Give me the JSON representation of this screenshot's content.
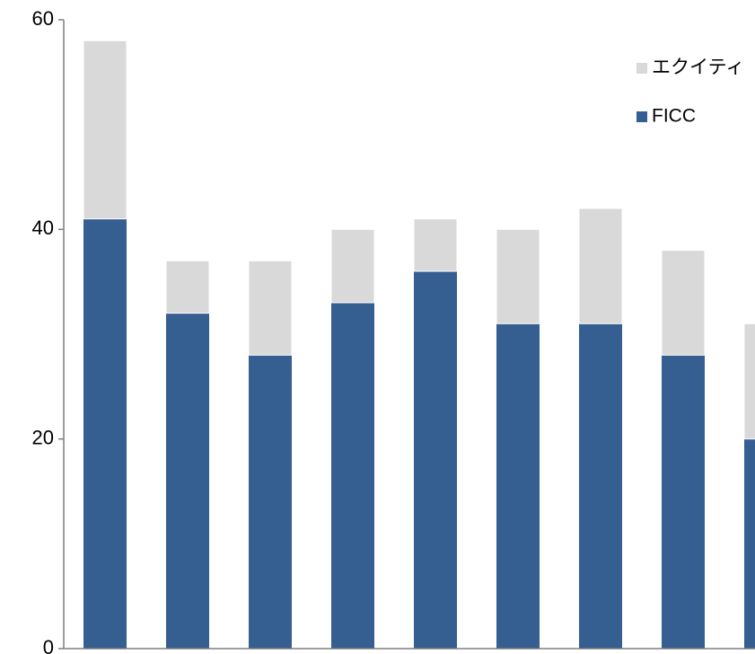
{
  "chart_data": {
    "type": "bar",
    "stacked": true,
    "categories": [
      "",
      "",
      "",
      "",
      "",
      "",
      "",
      "",
      ""
    ],
    "series": [
      {
        "name": "FICC",
        "color": "#355e91",
        "values": [
          41,
          32,
          28,
          33,
          36,
          31,
          31,
          28,
          20
        ]
      },
      {
        "name": "エクイティ",
        "color": "#d9d9d9",
        "values": [
          17,
          5,
          9,
          7,
          5,
          9,
          11,
          10,
          11
        ]
      }
    ],
    "ylim": [
      0,
      60
    ],
    "yticks": [
      0,
      20,
      40,
      60
    ],
    "grid": false,
    "legend": {
      "placement": "top-right",
      "order": [
        "エクイティ",
        "FICC"
      ]
    },
    "title": "",
    "xlabel": "",
    "ylabel": ""
  }
}
